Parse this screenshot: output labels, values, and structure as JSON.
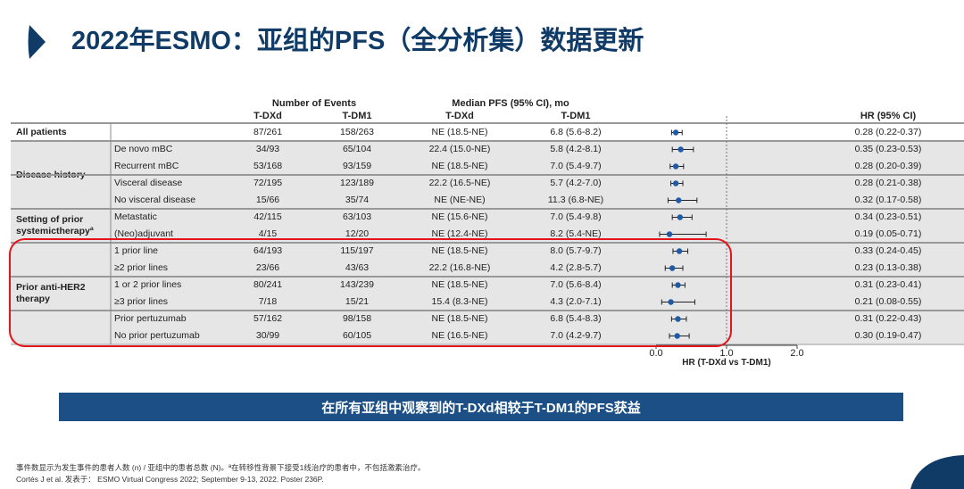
{
  "title": "2022年ESMO：亚组的PFS（全分析集）数据更新",
  "headers": {
    "events": "Number of Events",
    "pfs": "Median PFS (95% CI), mo",
    "tdxd": "T-DXd",
    "tdm1": "T-DM1",
    "hr": "HR (95% CI)"
  },
  "groups": [
    {
      "label": "All patients",
      "rows": [
        0
      ]
    },
    {
      "label": "Disease history",
      "rows": [
        1,
        2,
        3,
        4
      ]
    },
    {
      "label": "Setting of prior systemictherapyª",
      "rows": [
        5,
        6
      ]
    },
    {
      "label": "Prior anti-HER2 therapy",
      "rows": [
        7,
        8,
        9,
        10,
        11,
        12
      ]
    }
  ],
  "rows": [
    {
      "sub": "",
      "ev_tdxd": "87/261",
      "ev_tdm1": "158/263",
      "pfs_tdxd": "NE (18.5-NE)",
      "pfs_tdm1": "6.8 (5.6-8.2)",
      "hr_text": "0.28 (0.22-0.37)",
      "hr": 0.28,
      "lo": 0.22,
      "hi": 0.37
    },
    {
      "sub": "De novo mBC",
      "ev_tdxd": "34/93",
      "ev_tdm1": "65/104",
      "pfs_tdxd": "22.4 (15.0-NE)",
      "pfs_tdm1": "5.8 (4.2-8.1)",
      "hr_text": "0.35 (0.23-0.53)",
      "hr": 0.35,
      "lo": 0.23,
      "hi": 0.53
    },
    {
      "sub": "Recurrent mBC",
      "ev_tdxd": "53/168",
      "ev_tdm1": "93/159",
      "pfs_tdxd": "NE (18.5-NE)",
      "pfs_tdm1": "7.0 (5.4-9.7)",
      "hr_text": "0.28 (0.20-0.39)",
      "hr": 0.28,
      "lo": 0.2,
      "hi": 0.39
    },
    {
      "sub": "Visceral disease",
      "ev_tdxd": "72/195",
      "ev_tdm1": "123/189",
      "pfs_tdxd": "22.2 (16.5-NE)",
      "pfs_tdm1": "5.7 (4.2-7.0)",
      "hr_text": "0.28 (0.21-0.38)",
      "hr": 0.28,
      "lo": 0.21,
      "hi": 0.38
    },
    {
      "sub": "No visceral disease",
      "ev_tdxd": "15/66",
      "ev_tdm1": "35/74",
      "pfs_tdxd": "NE (NE-NE)",
      "pfs_tdm1": "11.3 (6.8-NE)",
      "hr_text": "0.32 (0.17-0.58)",
      "hr": 0.32,
      "lo": 0.17,
      "hi": 0.58
    },
    {
      "sub": "Metastatic",
      "ev_tdxd": "42/115",
      "ev_tdm1": "63/103",
      "pfs_tdxd": "NE (15.6-NE)",
      "pfs_tdm1": "7.0 (5.4-9.8)",
      "hr_text": "0.34 (0.23-0.51)",
      "hr": 0.34,
      "lo": 0.23,
      "hi": 0.51
    },
    {
      "sub": "(Neo)adjuvant",
      "ev_tdxd": "4/15",
      "ev_tdm1": "12/20",
      "pfs_tdxd": "NE (12.4-NE)",
      "pfs_tdm1": "8.2 (5.4-NE)",
      "hr_text": "0.19 (0.05-0.71)",
      "hr": 0.19,
      "lo": 0.05,
      "hi": 0.71
    },
    {
      "sub": "1 prior line",
      "ev_tdxd": "64/193",
      "ev_tdm1": "115/197",
      "pfs_tdxd": "NE (18.5-NE)",
      "pfs_tdm1": "8.0 (5.7-9.7)",
      "hr_text": "0.33 (0.24-0.45)",
      "hr": 0.33,
      "lo": 0.24,
      "hi": 0.45
    },
    {
      "sub": "≥2 prior lines",
      "ev_tdxd": "23/66",
      "ev_tdm1": "43/63",
      "pfs_tdxd": "22.2 (16.8-NE)",
      "pfs_tdm1": "4.2 (2.8-5.7)",
      "hr_text": "0.23 (0.13-0.38)",
      "hr": 0.23,
      "lo": 0.13,
      "hi": 0.38
    },
    {
      "sub": "1 or 2 prior lines",
      "ev_tdxd": "80/241",
      "ev_tdm1": "143/239",
      "pfs_tdxd": "NE (18.5-NE)",
      "pfs_tdm1": "7.0 (5.6-8.4)",
      "hr_text": "0.31 (0.23-0.41)",
      "hr": 0.31,
      "lo": 0.23,
      "hi": 0.41
    },
    {
      "sub": "≥3 prior lines",
      "ev_tdxd": "7/18",
      "ev_tdm1": "15/21",
      "pfs_tdxd": "15.4 (8.3-NE)",
      "pfs_tdm1": "4.3 (2.0-7.1)",
      "hr_text": "0.21 (0.08-0.55)",
      "hr": 0.21,
      "lo": 0.08,
      "hi": 0.55
    },
    {
      "sub": "Prior pertuzumab",
      "ev_tdxd": "57/162",
      "ev_tdm1": "98/158",
      "pfs_tdxd": "NE (18.5-NE)",
      "pfs_tdm1": "6.8 (5.4-8.3)",
      "hr_text": "0.31 (0.22-0.43)",
      "hr": 0.31,
      "lo": 0.22,
      "hi": 0.43
    },
    {
      "sub": "No prior pertuzumab",
      "ev_tdxd": "30/99",
      "ev_tdm1": "60/105",
      "pfs_tdxd": "NE (16.5-NE)",
      "pfs_tdm1": "7.0 (4.2-9.7)",
      "hr_text": "0.30 (0.19-0.47)",
      "hr": 0.3,
      "lo": 0.19,
      "hi": 0.47
    }
  ],
  "axis": {
    "ticks": [
      "0.0",
      "1.0",
      "2.0"
    ],
    "label": "HR (T-DXd vs T-DM1)"
  },
  "banner": "在所有亚组中观察到的T-DXd相较于T-DM1的PFS获益",
  "footnote1": "事件数显示为发生事件的患者人数 (n) / 亚组中的患者总数 (N)。ª在转移性背景下接受1线治疗的患者中，不包括激素治疗。",
  "footnote2": "Cortés J et al. 发表于： ESMO Virtual Congress 2022; September 9-13, 2022. Poster 236P.",
  "colors": {
    "title": "#0f3b66",
    "banner": "#1b4f86",
    "dot": "#1f5aa6",
    "highlight": "#e3141b"
  }
}
